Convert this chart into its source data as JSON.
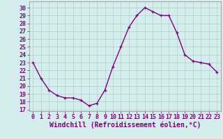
{
  "x": [
    0,
    1,
    2,
    3,
    4,
    5,
    6,
    7,
    8,
    9,
    10,
    11,
    12,
    13,
    14,
    15,
    16,
    17,
    18,
    19,
    20,
    21,
    22,
    23
  ],
  "y": [
    23,
    21,
    19.5,
    18.8,
    18.5,
    18.5,
    18.2,
    17.5,
    17.8,
    19.5,
    22.5,
    25,
    27.5,
    29,
    30,
    29.5,
    29,
    29,
    26.8,
    24,
    23.2,
    23,
    22.8,
    21.8
  ],
  "line_color": "#800080",
  "marker": "+",
  "bg_color": "#d4eeed",
  "grid_color": "#b0cccb",
  "xlabel": "Windchill (Refroidissement éolien,°C)",
  "yticks": [
    17,
    18,
    19,
    20,
    21,
    22,
    23,
    24,
    25,
    26,
    27,
    28,
    29,
    30
  ],
  "xticks": [
    0,
    1,
    2,
    3,
    4,
    5,
    6,
    7,
    8,
    9,
    10,
    11,
    12,
    13,
    14,
    15,
    16,
    17,
    18,
    19,
    20,
    21,
    22,
    23
  ],
  "ylim": [
    16.8,
    30.8
  ],
  "xlim": [
    -0.5,
    23.5
  ],
  "xlabel_fontsize": 7,
  "tick_fontsize": 6,
  "line_width": 1.0,
  "marker_size": 3.5
}
